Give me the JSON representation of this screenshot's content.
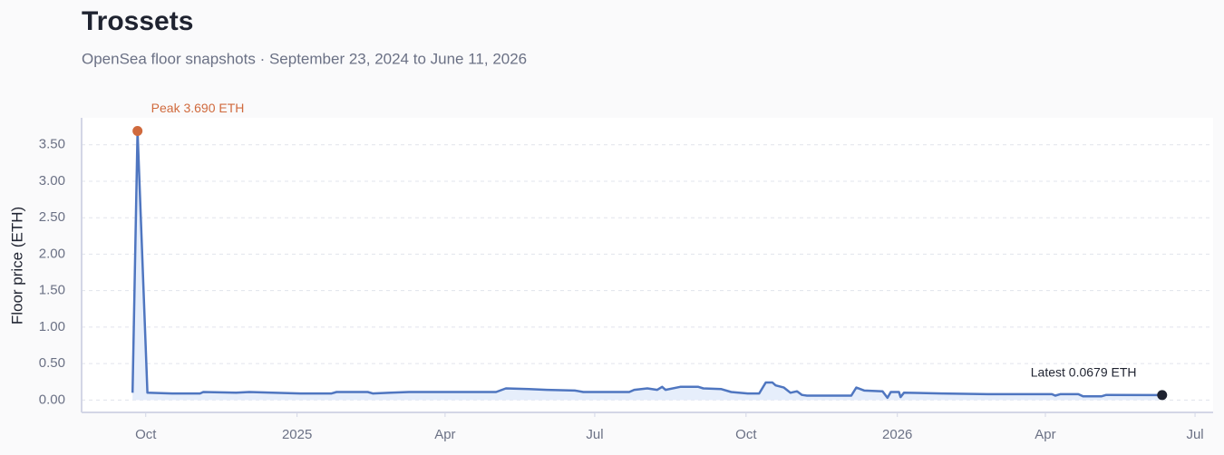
{
  "chart_data": {
    "type": "line",
    "title": "Trossets",
    "subtitle": "OpenSea floor snapshots · September 23, 2024 to June 11, 2026",
    "y_label": "Floor price (ETH)",
    "x": [
      "2024-09-23",
      "2024-09-26",
      "2024-10-02",
      "2024-10-17",
      "2024-11-03",
      "2024-11-05",
      "2024-11-25",
      "2024-12-03",
      "2024-12-17",
      "2025-01-03",
      "2025-01-22",
      "2025-01-25",
      "2025-02-13",
      "2025-02-16",
      "2025-02-27",
      "2025-03-10",
      "2025-05-02",
      "2025-05-08",
      "2025-05-22",
      "2025-06-02",
      "2025-06-19",
      "2025-06-24",
      "2025-07-22",
      "2025-07-25",
      "2025-08-02",
      "2025-08-08",
      "2025-08-11",
      "2025-08-13",
      "2025-08-22",
      "2025-09-02",
      "2025-09-05",
      "2025-09-16",
      "2025-09-22",
      "2025-10-02",
      "2025-10-09",
      "2025-10-13",
      "2025-10-17",
      "2025-10-19",
      "2025-10-24",
      "2025-10-28",
      "2025-11-01",
      "2025-11-04",
      "2025-11-07",
      "2025-12-04",
      "2025-12-07",
      "2025-12-12",
      "2025-12-23",
      "2025-12-26",
      "2025-12-28",
      "2026-01-02",
      "2026-01-03",
      "2026-01-05",
      "2026-01-28",
      "2026-02-25",
      "2026-04-05",
      "2026-04-07",
      "2026-04-10",
      "2026-04-21",
      "2026-04-24",
      "2026-05-05",
      "2026-05-08",
      "2026-06-11"
    ],
    "series": [
      {
        "name": "Floor price",
        "color": "#4f76c0",
        "fill": "#e6eefb",
        "values": [
          0.1,
          3.69,
          0.1,
          0.09,
          0.09,
          0.11,
          0.1,
          0.11,
          0.1,
          0.09,
          0.09,
          0.11,
          0.11,
          0.09,
          0.1,
          0.11,
          0.11,
          0.16,
          0.15,
          0.14,
          0.13,
          0.11,
          0.11,
          0.14,
          0.16,
          0.14,
          0.18,
          0.14,
          0.18,
          0.18,
          0.16,
          0.15,
          0.11,
          0.09,
          0.09,
          0.24,
          0.24,
          0.2,
          0.17,
          0.1,
          0.12,
          0.07,
          0.06,
          0.06,
          0.17,
          0.13,
          0.12,
          0.03,
          0.11,
          0.11,
          0.04,
          0.1,
          0.09,
          0.08,
          0.08,
          0.06,
          0.08,
          0.08,
          0.05,
          0.05,
          0.07,
          0.0679
        ]
      }
    ],
    "annotations": [
      {
        "text": "Peak 3.690 ETH",
        "index": 1,
        "color": "#d06a3d"
      },
      {
        "text": "Latest 0.0679 ETH",
        "index": 61,
        "color": "#1f2330"
      }
    ],
    "xlim": [
      "2024-08-23",
      "2026-07-12"
    ],
    "xticks": [
      {
        "value": "2024-10-01",
        "label": "Oct"
      },
      {
        "value": "2025-01-01",
        "label": "2025"
      },
      {
        "value": "2025-04-01",
        "label": "Apr"
      },
      {
        "value": "2025-07-01",
        "label": "Jul"
      },
      {
        "value": "2025-10-01",
        "label": "Oct"
      },
      {
        "value": "2026-01-01",
        "label": "2026"
      },
      {
        "value": "2026-04-01",
        "label": "Apr"
      },
      {
        "value": "2026-07-01",
        "label": "Jul"
      }
    ],
    "ylim": [
      -0.17,
      3.87
    ],
    "yticks": [
      {
        "value": 0,
        "label": "0.00"
      },
      {
        "value": 0.5,
        "label": "0.50"
      },
      {
        "value": 1,
        "label": "1.00"
      },
      {
        "value": 1.5,
        "label": "1.50"
      },
      {
        "value": 2,
        "label": "2.00"
      },
      {
        "value": 2.5,
        "label": "2.50"
      },
      {
        "value": 3,
        "label": "3.00"
      },
      {
        "value": 3.5,
        "label": "3.50"
      }
    ],
    "grid": true
  }
}
